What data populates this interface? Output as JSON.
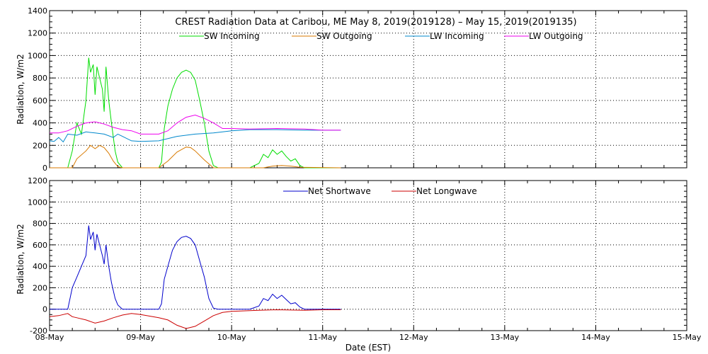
{
  "chart_data": [
    {
      "type": "line",
      "panel": "top",
      "title": "CREST Radiation Data at Caribou, ME   May  8, 2019(2019128) – May 15, 2019(2019135)",
      "xlabel": "",
      "ylabel": "Radiation, W/m2",
      "xlim": [
        0,
        7
      ],
      "ylim": [
        0,
        1400
      ],
      "yticks": [
        0,
        200,
        400,
        600,
        800,
        1000,
        1200,
        1400
      ],
      "grid": true,
      "legend_position": "top",
      "series": [
        {
          "name": "SW Incoming",
          "color": "#00dd00",
          "x": [
            0,
            0.2,
            0.25,
            0.3,
            0.35,
            0.4,
            0.43,
            0.45,
            0.48,
            0.5,
            0.52,
            0.55,
            0.58,
            0.6,
            0.62,
            0.65,
            0.68,
            0.72,
            0.75,
            0.8,
            0.9,
            1.0,
            1.2,
            1.23,
            1.26,
            1.3,
            1.35,
            1.4,
            1.45,
            1.5,
            1.55,
            1.6,
            1.65,
            1.7,
            1.75,
            1.8,
            1.85,
            2.0,
            2.2,
            2.3,
            2.35,
            2.4,
            2.45,
            2.5,
            2.55,
            2.6,
            2.65,
            2.7,
            2.75,
            2.8,
            3.0,
            3.2
          ],
          "y": [
            0,
            0,
            150,
            400,
            300,
            600,
            980,
            850,
            920,
            650,
            900,
            800,
            700,
            500,
            900,
            600,
            400,
            150,
            50,
            0,
            0,
            0,
            0,
            50,
            350,
            550,
            700,
            800,
            850,
            870,
            850,
            780,
            600,
            400,
            150,
            20,
            0,
            0,
            0,
            40,
            120,
            90,
            160,
            120,
            150,
            100,
            60,
            80,
            20,
            0,
            0,
            0
          ]
        },
        {
          "name": "SW Outgoing",
          "color": "#d87a00",
          "x": [
            0,
            0.25,
            0.3,
            0.4,
            0.45,
            0.5,
            0.55,
            0.6,
            0.65,
            0.7,
            0.75,
            0.8,
            1.2,
            1.3,
            1.4,
            1.5,
            1.55,
            1.6,
            1.7,
            1.8,
            2.35,
            2.45,
            2.55,
            2.65,
            2.75,
            3.2
          ],
          "y": [
            0,
            0,
            80,
            150,
            200,
            170,
            200,
            180,
            130,
            60,
            10,
            0,
            0,
            60,
            140,
            185,
            180,
            150,
            70,
            0,
            0,
            15,
            20,
            15,
            5,
            0
          ]
        },
        {
          "name": "LW Incoming",
          "color": "#0088cc",
          "x": [
            0,
            0.05,
            0.1,
            0.15,
            0.2,
            0.3,
            0.4,
            0.5,
            0.6,
            0.7,
            0.75,
            0.8,
            0.9,
            1.0,
            1.2,
            1.4,
            1.6,
            1.8,
            1.9,
            2.0,
            2.2,
            2.5,
            2.8,
            3.0,
            3.2
          ],
          "y": [
            240,
            235,
            270,
            230,
            300,
            290,
            320,
            310,
            300,
            270,
            300,
            280,
            240,
            235,
            240,
            280,
            300,
            310,
            320,
            330,
            340,
            340,
            335,
            335,
            335
          ]
        },
        {
          "name": "LW Outgoing",
          "color": "#ee00ee",
          "x": [
            0,
            0.1,
            0.2,
            0.3,
            0.4,
            0.5,
            0.6,
            0.7,
            0.8,
            0.9,
            1.0,
            1.2,
            1.3,
            1.4,
            1.5,
            1.6,
            1.7,
            1.8,
            1.9,
            2.0,
            2.2,
            2.5,
            2.8,
            3.0,
            3.2
          ],
          "y": [
            310,
            310,
            330,
            370,
            400,
            410,
            390,
            360,
            340,
            330,
            300,
            300,
            330,
            400,
            450,
            470,
            440,
            400,
            350,
            350,
            345,
            350,
            345,
            335,
            335
          ]
        }
      ]
    },
    {
      "type": "line",
      "panel": "bottom",
      "title": "",
      "xlabel": "Date (EST)",
      "ylabel": "Radiation, W/m2",
      "xlim": [
        0,
        7
      ],
      "ylim": [
        -200,
        1200
      ],
      "yticks": [
        -200,
        0,
        200,
        400,
        600,
        800,
        1000,
        1200
      ],
      "categories": [
        "08-May",
        "09-May",
        "10-May",
        "11-May",
        "12-May",
        "13-May",
        "14-May",
        "15-May"
      ],
      "grid": true,
      "legend_position": "top",
      "series": [
        {
          "name": "Net Shortwave",
          "color": "#0000cc",
          "x": [
            0,
            0.2,
            0.25,
            0.3,
            0.35,
            0.4,
            0.43,
            0.45,
            0.48,
            0.5,
            0.52,
            0.55,
            0.58,
            0.6,
            0.62,
            0.65,
            0.68,
            0.72,
            0.75,
            0.8,
            0.9,
            1.0,
            1.2,
            1.23,
            1.26,
            1.3,
            1.35,
            1.4,
            1.45,
            1.5,
            1.55,
            1.6,
            1.65,
            1.7,
            1.75,
            1.8,
            1.85,
            2.0,
            2.2,
            2.3,
            2.35,
            2.4,
            2.45,
            2.5,
            2.55,
            2.6,
            2.65,
            2.7,
            2.75,
            2.8,
            3.0,
            3.2
          ],
          "y": [
            0,
            0,
            200,
            300,
            400,
            500,
            780,
            650,
            720,
            550,
            700,
            600,
            500,
            420,
            600,
            400,
            250,
            100,
            40,
            0,
            0,
            0,
            0,
            50,
            280,
            400,
            550,
            630,
            670,
            680,
            660,
            600,
            450,
            300,
            100,
            10,
            0,
            0,
            0,
            30,
            100,
            80,
            140,
            100,
            130,
            90,
            50,
            60,
            20,
            0,
            0,
            0
          ]
        },
        {
          "name": "Net Longwave",
          "color": "#cc0000",
          "x": [
            0,
            0.1,
            0.2,
            0.25,
            0.3,
            0.4,
            0.5,
            0.6,
            0.7,
            0.8,
            0.9,
            1.0,
            1.2,
            1.3,
            1.4,
            1.5,
            1.6,
            1.7,
            1.8,
            1.9,
            2.0,
            2.3,
            2.5,
            2.8,
            3.0,
            3.2
          ],
          "y": [
            -70,
            -60,
            -40,
            -70,
            -80,
            -100,
            -130,
            -110,
            -80,
            -55,
            -40,
            -50,
            -80,
            -100,
            -150,
            -180,
            -160,
            -110,
            -60,
            -30,
            -20,
            -10,
            -5,
            -10,
            -5,
            -5
          ]
        }
      ]
    }
  ]
}
